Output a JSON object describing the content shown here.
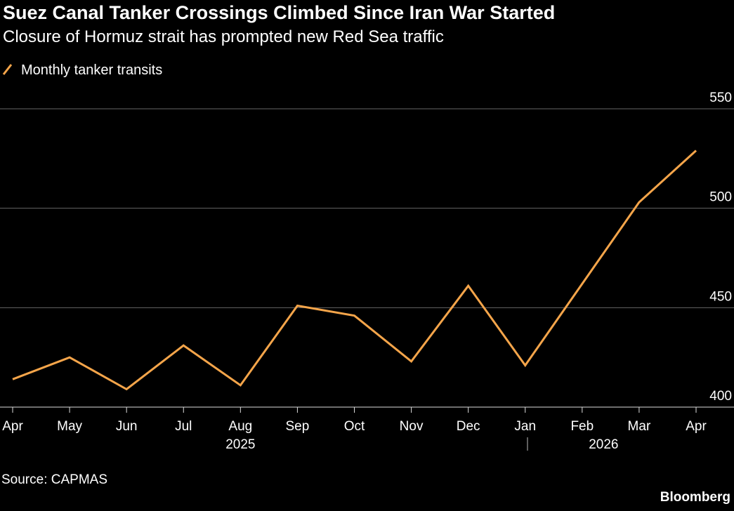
{
  "chart_data": {
    "type": "line",
    "title": "Suez Canal Tanker Crossings Climbed Since Iran War Started",
    "subtitle": "Closure of Hormuz strait has prompted new Red Sea traffic",
    "categories": [
      "Apr",
      "May",
      "Jun",
      "Jul",
      "Aug",
      "Sep",
      "Oct",
      "Nov",
      "Dec",
      "Jan",
      "Feb",
      "Mar",
      "Apr"
    ],
    "year_labels": [
      "2025",
      "2026"
    ],
    "series": [
      {
        "name": "Monthly tanker transits",
        "color": "#f5a54a",
        "values": [
          414,
          425,
          409,
          431,
          411,
          451,
          446,
          423,
          461,
          421,
          462,
          503,
          529
        ]
      }
    ],
    "ylim": [
      400,
      550
    ],
    "yticks": [
      400,
      450,
      500,
      550
    ],
    "grid": true,
    "source": "Source: CAPMAS",
    "brand": "Bloomberg"
  }
}
